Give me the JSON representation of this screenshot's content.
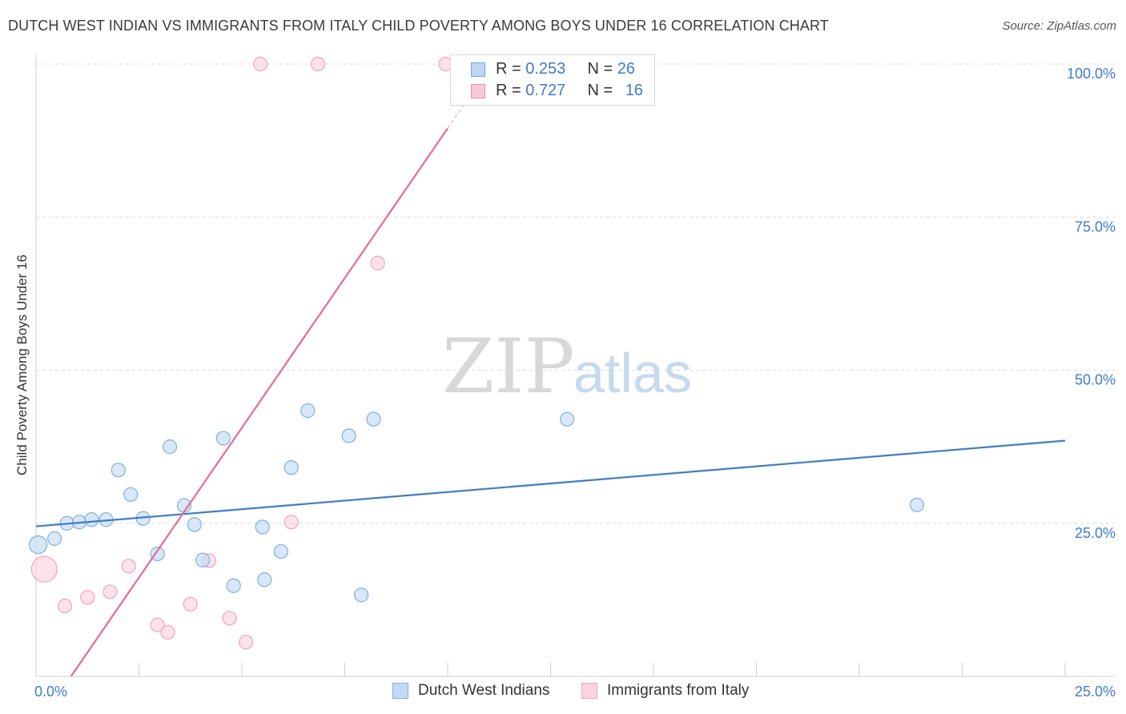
{
  "header": {
    "title": "DUTCH WEST INDIAN VS IMMIGRANTS FROM ITALY CHILD POVERTY AMONG BOYS UNDER 16 CORRELATION CHART",
    "source": "Source: ZipAtlas.com"
  },
  "watermark": {
    "zip": "ZIP",
    "atlas": "atlas"
  },
  "legend": {
    "rows": [
      {
        "r_label": "R = ",
        "r_value": "0.253",
        "n_label": "N = ",
        "n_value": "26",
        "color": "#6fa8e8",
        "fill": "#bdd6f5"
      },
      {
        "r_label": "R = ",
        "r_value": "0.727",
        "n_label": "N = ",
        "n_value": "16",
        "color": "#f08fb0",
        "fill": "#f9c8d8"
      }
    ]
  },
  "bottom_legend": {
    "series1": "Dutch West Indians",
    "series2": "Immigrants from Italy"
  },
  "chart_data": {
    "type": "scatter",
    "title": "DUTCH WEST INDIAN VS IMMIGRANTS FROM ITALY CHILD POVERTY AMONG BOYS UNDER 16 CORRELATION CHART",
    "xlabel": "",
    "ylabel": "Child Poverty Among Boys Under 16",
    "xlim": [
      0,
      25
    ],
    "ylim": [
      0,
      100
    ],
    "x_tick_labels": [
      {
        "value": 0,
        "label": "0.0%"
      },
      {
        "value": 25,
        "label": "25.0%"
      }
    ],
    "y_tick_labels": [
      {
        "value": 25,
        "label": "25.0%"
      },
      {
        "value": 50,
        "label": "50.0%"
      },
      {
        "value": 75,
        "label": "75.0%"
      },
      {
        "value": 100,
        "label": "100.0%"
      }
    ],
    "series": [
      {
        "name": "Dutch West Indians",
        "color": "#3d7cc9",
        "point_stroke": "#7eaee5",
        "point_fill": "#c5dbf5",
        "trend": {
          "x": [
            0,
            25
          ],
          "y": [
            24.5,
            38.5
          ]
        },
        "points": [
          {
            "x": 0.05,
            "y": 21.5,
            "size": 2
          },
          {
            "x": 0.45,
            "y": 22.5,
            "size": 1
          },
          {
            "x": 0.75,
            "y": 25.0,
            "size": 1
          },
          {
            "x": 1.05,
            "y": 25.2,
            "size": 1
          },
          {
            "x": 1.35,
            "y": 25.6,
            "size": 1
          },
          {
            "x": 1.7,
            "y": 25.6,
            "size": 1
          },
          {
            "x": 2.0,
            "y": 33.7,
            "size": 1
          },
          {
            "x": 2.3,
            "y": 29.7,
            "size": 1
          },
          {
            "x": 2.6,
            "y": 25.8,
            "size": 1
          },
          {
            "x": 2.95,
            "y": 20.0,
            "size": 1
          },
          {
            "x": 3.25,
            "y": 37.5,
            "size": 1
          },
          {
            "x": 3.6,
            "y": 27.9,
            "size": 1
          },
          {
            "x": 3.85,
            "y": 24.8,
            "size": 1
          },
          {
            "x": 4.05,
            "y": 19.0,
            "size": 1
          },
          {
            "x": 4.8,
            "y": 14.8,
            "size": 1
          },
          {
            "x": 5.55,
            "y": 15.8,
            "size": 1
          },
          {
            "x": 4.55,
            "y": 38.9,
            "size": 1
          },
          {
            "x": 5.5,
            "y": 24.4,
            "size": 1
          },
          {
            "x": 5.95,
            "y": 20.4,
            "size": 1
          },
          {
            "x": 6.2,
            "y": 34.1,
            "size": 1
          },
          {
            "x": 6.6,
            "y": 43.4,
            "size": 1
          },
          {
            "x": 7.6,
            "y": 39.3,
            "size": 1
          },
          {
            "x": 7.9,
            "y": 13.3,
            "size": 1
          },
          {
            "x": 8.2,
            "y": 42.0,
            "size": 1
          },
          {
            "x": 12.9,
            "y": 42.0,
            "size": 1
          },
          {
            "x": 21.4,
            "y": 28.0,
            "size": 1
          }
        ]
      },
      {
        "name": "Immigrants from Italy",
        "color": "#e56b96",
        "point_stroke": "#f3a3bf",
        "point_fill": "#fad3e0",
        "trend": {
          "x": [
            0.85,
            10.0
          ],
          "y": [
            0,
            89.5
          ]
        },
        "trend_dashed": {
          "x": [
            10.0,
            10.6
          ],
          "y": [
            89.5,
            95.4
          ]
        },
        "points": [
          {
            "x": 0.2,
            "y": 17.5,
            "size": 3
          },
          {
            "x": 0.7,
            "y": 11.5,
            "size": 1
          },
          {
            "x": 1.25,
            "y": 12.9,
            "size": 1
          },
          {
            "x": 1.8,
            "y": 13.8,
            "size": 1
          },
          {
            "x": 2.25,
            "y": 18.0,
            "size": 1
          },
          {
            "x": 2.95,
            "y": 8.4,
            "size": 1
          },
          {
            "x": 3.2,
            "y": 7.2,
            "size": 1
          },
          {
            "x": 3.75,
            "y": 11.8,
            "size": 1
          },
          {
            "x": 4.2,
            "y": 18.9,
            "size": 1
          },
          {
            "x": 4.7,
            "y": 9.5,
            "size": 1
          },
          {
            "x": 5.1,
            "y": 5.6,
            "size": 1
          },
          {
            "x": 6.2,
            "y": 25.2,
            "size": 1
          },
          {
            "x": 8.3,
            "y": 67.5,
            "size": 1
          },
          {
            "x": 5.45,
            "y": 100.0,
            "size": 1
          },
          {
            "x": 6.85,
            "y": 100.0,
            "size": 1
          },
          {
            "x": 9.95,
            "y": 100.0,
            "size": 1
          }
        ]
      }
    ]
  }
}
